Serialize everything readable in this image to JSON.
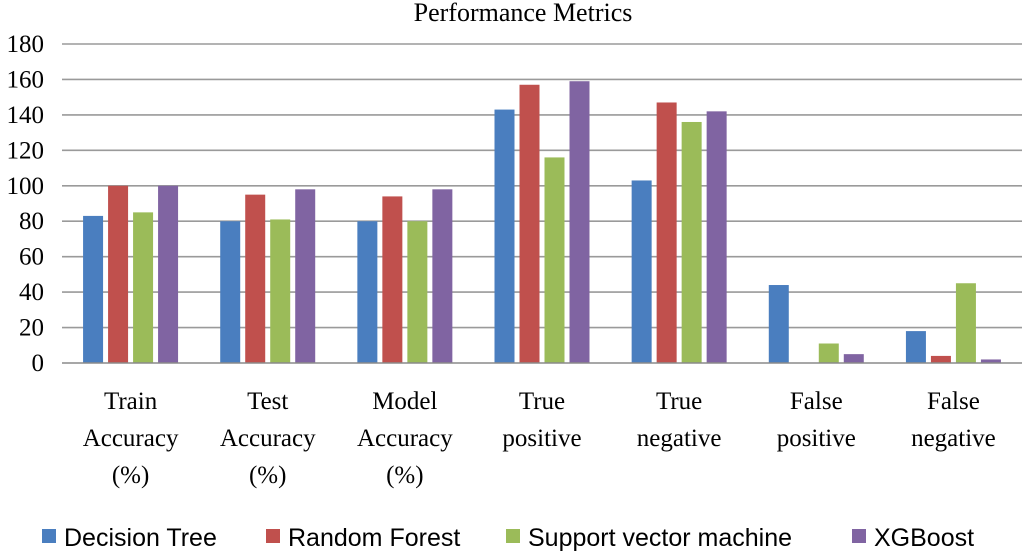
{
  "chart_data": {
    "type": "bar",
    "title": "Performance  Metrics",
    "xlabel": "",
    "ylabel": "",
    "ylim": [
      0,
      180
    ],
    "yticks": [
      0,
      20,
      40,
      60,
      80,
      100,
      120,
      140,
      160,
      180
    ],
    "grid": true,
    "legend_position": "bottom",
    "categories": [
      [
        "Train",
        "Accuracy",
        "(%)"
      ],
      [
        "Test",
        "Accuracy",
        "(%)"
      ],
      [
        "Model",
        "Accuracy",
        "(%)"
      ],
      [
        "True",
        "positive"
      ],
      [
        "True",
        "negative"
      ],
      [
        "False",
        "positive"
      ],
      [
        "False",
        "negative"
      ]
    ],
    "series": [
      {
        "name": "Decision Tree",
        "color": "#4a7ebf",
        "values": [
          83,
          80,
          80,
          143,
          103,
          44,
          18
        ]
      },
      {
        "name": "Random Forest",
        "color": "#c0504d",
        "values": [
          100,
          95,
          94,
          157,
          147,
          0,
          4
        ]
      },
      {
        "name": "Support vector machine",
        "color": "#9bbb59",
        "values": [
          85,
          81,
          80,
          116,
          136,
          11,
          45
        ]
      },
      {
        "name": "XGBoost",
        "color": "#8064a2",
        "values": [
          100,
          98,
          98,
          159,
          142,
          5,
          2
        ]
      }
    ]
  }
}
